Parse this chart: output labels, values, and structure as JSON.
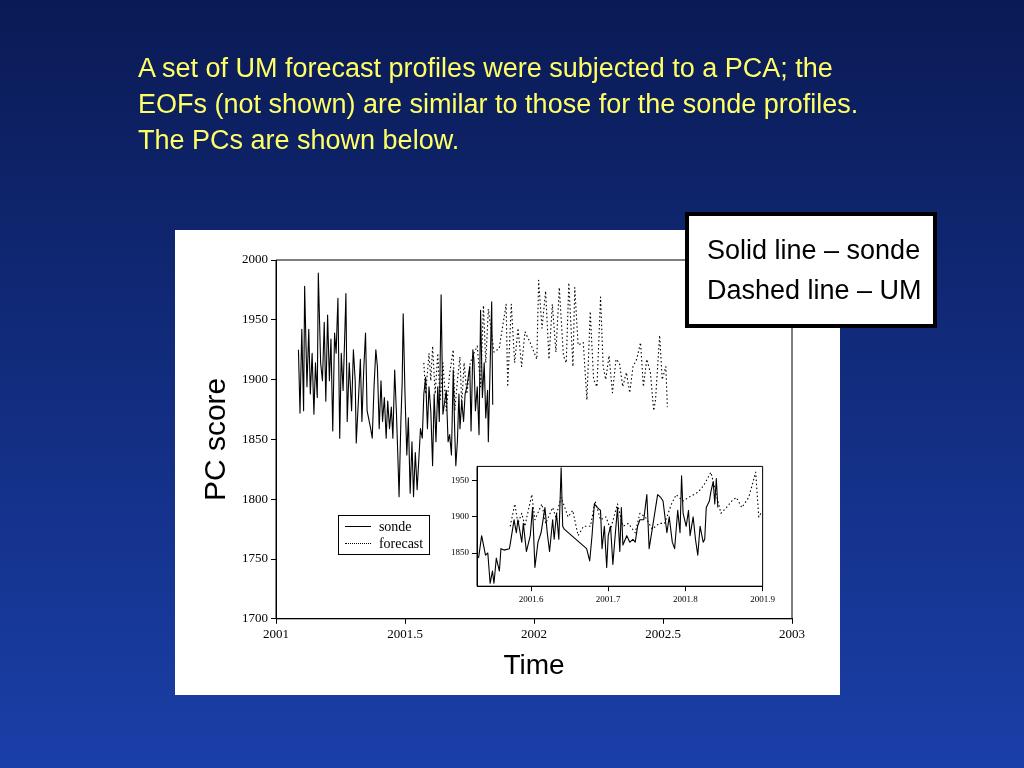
{
  "chart_data": [
    {
      "type": "line",
      "title": "A set of UM forecast profiles were subjected to a PCA; the EOFs (not shown) are similar to those for the sonde profiles. The PCs are shown below.",
      "xlabel": "Time",
      "ylabel": "PC score",
      "annotations": [
        "Solid line – sonde",
        "Dashed line – UM"
      ],
      "xlim": [
        2001,
        2003
      ],
      "xticks": [
        2001,
        2001.5,
        2002,
        2002.5,
        2003
      ],
      "ylim": [
        1700,
        2000
      ],
      "yticks": [
        1700,
        1750,
        1800,
        1850,
        1900,
        1950,
        2000
      ],
      "legend": "bottom left",
      "marker": "none",
      "series": [
        {
          "name": "sonde",
          "color": "#000000",
          "line_style": "solid",
          "x": [
            2001.087,
            2001.093,
            2001.1,
            2001.107,
            2001.111,
            2001.12,
            2001.127,
            2001.133,
            2001.14,
            2001.147,
            2001.153,
            2001.16,
            2001.164,
            2001.173,
            2001.18,
            2001.187,
            2001.193,
            2001.2,
            2001.207,
            2001.213,
            2001.22,
            2001.227,
            2001.233,
            2001.24,
            2001.247,
            2001.253,
            2001.26,
            2001.267,
            2001.271,
            2001.276,
            2001.284,
            2001.293,
            2001.3,
            2001.307,
            2001.311,
            2001.32,
            2001.327,
            2001.333,
            2001.34,
            2001.347,
            2001.353,
            2001.367,
            2001.373,
            2001.38,
            2001.387,
            2001.393,
            2001.4,
            2001.407,
            2001.413,
            2001.42,
            2001.427,
            2001.433,
            2001.44,
            2001.447,
            2001.453,
            2001.46,
            2001.467,
            2001.473,
            2001.477,
            2001.484,
            2001.489,
            2001.493,
            2001.5,
            2001.507,
            2001.513,
            2001.52,
            2001.527,
            2001.533,
            2001.54,
            2001.547,
            2001.553,
            2001.56,
            2001.567,
            2001.573,
            2001.58,
            2001.587,
            2001.593,
            2001.6,
            2001.607,
            2001.613,
            2001.62,
            2001.627,
            2001.633,
            2001.64,
            2001.647,
            2001.66,
            2001.667,
            2001.673,
            2001.68,
            2001.687,
            2001.693,
            2001.697,
            2001.703,
            2001.709,
            2001.713,
            2001.72,
            2001.727,
            2001.733,
            2001.74,
            2001.751,
            2001.756,
            2001.763,
            2001.767,
            2001.773,
            2001.78,
            2001.787,
            2001.793,
            2001.8,
            2001.807,
            2001.813,
            2001.82,
            2001.823,
            2001.828,
            2001.836,
            2001.84
          ],
          "values": [
            1925,
            1872,
            1942,
            1874,
            1978,
            1894,
            1942,
            1888,
            1922,
            1871,
            1914,
            1885,
            1989,
            1914,
            1899,
            1948,
            1882,
            1954,
            1899,
            1934,
            1857,
            1939,
            1922,
            1968,
            1851,
            1922,
            1891,
            1941,
            1972,
            1865,
            1914,
            1874,
            1925,
            1899,
            1847,
            1885,
            1917,
            1865,
            1908,
            1939,
            1874,
            1859,
            1851,
            1894,
            1925,
            1911,
            1859,
            1899,
            1865,
            1885,
            1851,
            1882,
            1859,
            1877,
            1851,
            1908,
            1871,
            1831,
            1802,
            1865,
            1897,
            1955,
            1888,
            1837,
            1868,
            1805,
            1848,
            1802,
            1839,
            1808,
            1831,
            1859,
            1851,
            1888,
            1902,
            1859,
            1894,
            1874,
            1828,
            1888,
            1848,
            1894,
            1865,
            1971,
            1871,
            1891,
            1848,
            1854,
            1837,
            1908,
            1854,
            1828,
            1848,
            1888,
            1859,
            1882,
            1865,
            1888,
            1894,
            1911,
            1857,
            1925,
            1917,
            1874,
            1894,
            1854,
            1958,
            1885,
            1914,
            1868,
            1891,
            1848,
            1894,
            1965,
            1879
          ]
        },
        {
          "name": "forecast",
          "color": "#000000",
          "line_style": "dotted",
          "x": [
            2001.573,
            2001.58,
            2001.593,
            2001.6,
            2001.607,
            2001.617,
            2001.627,
            2001.636,
            2001.647,
            2001.66,
            2001.673,
            2001.687,
            2001.693,
            2001.703,
            2001.713,
            2001.72,
            2001.729,
            2001.74,
            2001.753,
            2001.767,
            2001.78,
            2001.793,
            2001.804,
            2001.813,
            2001.823,
            2001.845,
            2001.865,
            2001.892,
            2001.898,
            2001.912,
            2001.925,
            2001.938,
            2001.952,
            2001.965,
            2001.985,
            2002.011,
            2002.018,
            2002.031,
            2002.045,
            2002.058,
            2002.071,
            2002.085,
            2002.098,
            2002.114,
            2002.125,
            2002.135,
            2002.151,
            2002.158,
            2002.171,
            2002.191,
            2002.205,
            2002.218,
            2002.231,
            2002.244,
            2002.258,
            2002.268,
            2002.278,
            2002.291,
            2002.304,
            2002.318,
            2002.331,
            2002.344,
            2002.358,
            2002.371,
            2002.384,
            2002.398,
            2002.413,
            2002.424,
            2002.437,
            2002.451,
            2002.464,
            2002.471,
            2002.487,
            2002.497,
            2002.511,
            2002.517
          ],
          "values": [
            1914,
            1888,
            1922,
            1899,
            1928,
            1888,
            1922,
            1882,
            1914,
            1874,
            1905,
            1925,
            1874,
            1899,
            1919,
            1879,
            1914,
            1888,
            1914,
            1922,
            1928,
            1894,
            1962,
            1914,
            1959,
            1923,
            1926,
            1963,
            1894,
            1963,
            1914,
            1943,
            1911,
            1940,
            1931,
            1917,
            1983,
            1943,
            1974,
            1917,
            1963,
            1923,
            1977,
            1920,
            1914,
            1981,
            1911,
            1977,
            1929,
            1931,
            1883,
            1957,
            1900,
            1894,
            1969,
            1911,
            1900,
            1920,
            1889,
            1917,
            1914,
            1894,
            1906,
            1889,
            1911,
            1917,
            1931,
            1894,
            1917,
            1906,
            1874,
            1883,
            1937,
            1900,
            1911,
            1877
          ]
        }
      ]
    },
    {
      "type": "line",
      "xlim": [
        2001.53,
        2001.9
      ],
      "xticks": [
        2001.6,
        2001.7,
        2001.8,
        2001.9
      ],
      "ylim": [
        1804,
        1970
      ],
      "yticks": [
        1850,
        1900,
        1950
      ],
      "marker": "none",
      "series": [
        {
          "color": "#000000",
          "line_style": "solid",
          "x": [
            2001.532,
            2001.536,
            2001.541,
            2001.544,
            2001.547,
            2001.55,
            2001.552,
            2001.555,
            2001.559,
            2001.561,
            2001.565,
            2001.572,
            2001.574,
            2001.578,
            2001.581,
            2001.583,
            2001.588,
            2001.59,
            2001.594,
            2001.599,
            2001.602,
            2001.605,
            2001.609,
            2001.613,
            2001.618,
            2001.621,
            2001.624,
            2001.628,
            2001.63,
            2001.633,
            2001.636,
            2001.639,
            2001.641,
            2001.643,
            2001.672,
            2001.676,
            2001.679,
            2001.682,
            2001.686,
            2001.69,
            2001.692,
            2001.695,
            2001.698,
            2001.7,
            2001.703,
            2001.706,
            2001.708,
            2001.712,
            2001.715,
            2001.717,
            2001.719,
            2001.724,
            2001.728,
            2001.732,
            2001.735,
            2001.738,
            2001.741,
            2001.746,
            2001.75,
            2001.753,
            2001.757,
            2001.764,
            2001.768,
            2001.771,
            2001.776,
            2001.779,
            2001.783,
            2001.786,
            2001.79,
            2001.793,
            2001.795,
            2001.797,
            2001.801,
            2001.804,
            2001.806,
            2001.81,
            2001.813,
            2001.816,
            2001.819,
            2001.823,
            2001.825,
            2001.827,
            2001.831,
            2001.833,
            2001.836,
            2001.838,
            2001.84,
            2001.842
          ],
          "values": [
            1843,
            1874,
            1847,
            1850,
            1808,
            1825,
            1808,
            1843,
            1825,
            1856,
            1854,
            1856,
            1869,
            1896,
            1878,
            1896,
            1865,
            1891,
            1852,
            1874,
            1913,
            1830,
            1865,
            1878,
            1913,
            1878,
            1852,
            1896,
            1869,
            1905,
            1869,
            1968,
            1887,
            1883,
            1856,
            1839,
            1874,
            1918,
            1913,
            1909,
            1856,
            1887,
            1830,
            1874,
            1887,
            1834,
            1861,
            1913,
            1852,
            1913,
            1861,
            1874,
            1865,
            1869,
            1865,
            1887,
            1896,
            1896,
            1931,
            1856,
            1883,
            1931,
            1927,
            1922,
            1878,
            1900,
            1865,
            1856,
            1909,
            1878,
            1957,
            1905,
            1887,
            1909,
            1874,
            1900,
            1869,
            1847,
            1887,
            1865,
            1869,
            1913,
            1922,
            1935,
            1949,
            1918,
            1953,
            1913
          ]
        },
        {
          "color": "#000000",
          "line_style": "dotted",
          "x": [
            2001.573,
            2001.579,
            2001.583,
            2001.588,
            2001.592,
            2001.601,
            2001.605,
            2001.614,
            2001.619,
            2001.628,
            2001.632,
            2001.639,
            2001.648,
            2001.654,
            2001.661,
            2001.668,
            2001.677,
            2001.683,
            2001.69,
            2001.697,
            2001.703,
            2001.712,
            2001.719,
            2001.726,
            2001.735,
            2001.741,
            2001.748,
            2001.757,
            2001.766,
            2001.773,
            2001.782,
            2001.788,
            2001.797,
            2001.804,
            2001.811,
            2001.817,
            2001.824,
            2001.833,
            2001.84,
            2001.846,
            2001.853,
            2001.86,
            2001.866,
            2001.873,
            2001.882,
            2001.891,
            2001.895,
            2001.9
          ],
          "values": [
            1887,
            1918,
            1891,
            1905,
            1887,
            1931,
            1896,
            1918,
            1891,
            1913,
            1900,
            1927,
            1900,
            1909,
            1874,
            1887,
            1887,
            1922,
            1896,
            1900,
            1883,
            1918,
            1887,
            1891,
            1878,
            1905,
            1900,
            1883,
            1891,
            1891,
            1918,
            1931,
            1922,
            1927,
            1931,
            1935,
            1944,
            1962,
            1931,
            1905,
            1913,
            1922,
            1927,
            1913,
            1927,
            1962,
            1900,
            1909
          ]
        }
      ]
    }
  ]
}
